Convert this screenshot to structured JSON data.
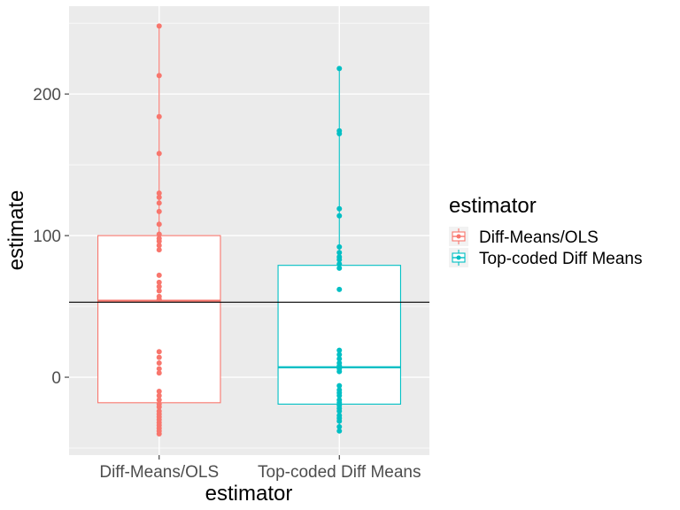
{
  "chart_data": {
    "type": "boxplot",
    "title": "",
    "xlabel": "estimator",
    "ylabel": "estimate",
    "ylim": [
      -55,
      262
    ],
    "y_ticks": [
      0,
      100,
      200
    ],
    "y_tick_labels": [
      "0",
      "100",
      "200"
    ],
    "categories": [
      "Diff-Means/OLS",
      "Top-coded Diff Means"
    ],
    "reference_line": 53,
    "series": [
      {
        "name": "Diff-Means/OLS",
        "color": "#F8766D",
        "box": {
          "lower_whisker": -40,
          "q1": -18,
          "median": 54,
          "q3": 100,
          "upper_whisker": 248
        },
        "points": [
          248,
          213,
          184,
          158,
          130,
          127,
          123,
          117,
          108,
          101,
          98,
          96,
          93,
          90,
          72,
          67,
          64,
          61,
          57,
          55,
          18,
          14,
          10,
          6,
          3,
          -10,
          -13,
          -16,
          -19,
          -21,
          -24,
          -26,
          -28,
          -30,
          -32,
          -34,
          -36,
          -38,
          -40
        ]
      },
      {
        "name": "Top-coded Diff Means",
        "color": "#00BFC4",
        "box": {
          "lower_whisker": -38,
          "q1": -19,
          "median": 7,
          "q3": 79,
          "upper_whisker": 218
        },
        "points": [
          218,
          174,
          172,
          119,
          114,
          92,
          88,
          85,
          83,
          80,
          77,
          62,
          19,
          16,
          13,
          10,
          8,
          6,
          4,
          -6,
          -9,
          -11,
          -13,
          -16,
          -18,
          -20,
          -22,
          -24,
          -27,
          -29,
          -31,
          -35,
          -38
        ]
      }
    ],
    "legend": {
      "title": "estimator",
      "position": "right",
      "entries": [
        "Diff-Means/OLS",
        "Top-coded Diff Means"
      ]
    },
    "grid": true
  }
}
